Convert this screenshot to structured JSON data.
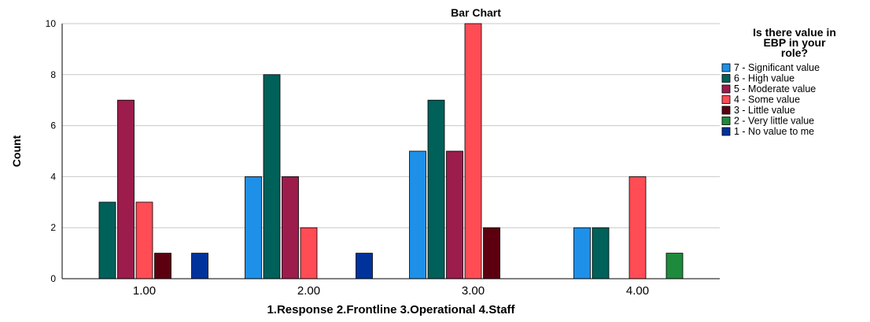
{
  "chart_data": {
    "type": "bar",
    "title": "Bar Chart",
    "xlabel": "1.Response 2.Frontline 3.Operational 4.Staff",
    "ylabel": "Count",
    "categories": [
      "1.00",
      "2.00",
      "3.00",
      "4.00"
    ],
    "ylim": [
      0,
      10
    ],
    "yticks": [
      0,
      2,
      4,
      6,
      8,
      10
    ],
    "grid": true,
    "legend": {
      "title": "Is there value in EBP in your role?",
      "title_lines": [
        "Is there value in",
        "EBP in your",
        "role?"
      ],
      "placement": "right"
    },
    "series": [
      {
        "name": "7 - Significant value",
        "color": "#1E90E8",
        "values": [
          null,
          4,
          5,
          2
        ]
      },
      {
        "name": "6 - High value",
        "color": "#00605A",
        "values": [
          3,
          8,
          7,
          2
        ]
      },
      {
        "name": "5 - Moderate value",
        "color": "#9C1C4C",
        "values": [
          7,
          4,
          5,
          null
        ]
      },
      {
        "name": "4 - Some value",
        "color": "#FF4C55",
        "values": [
          3,
          2,
          10,
          4
        ]
      },
      {
        "name": "3 - Little value",
        "color": "#5C0010",
        "values": [
          1,
          null,
          2,
          null
        ]
      },
      {
        "name": "2 - Very little value",
        "color": "#1E8A3C",
        "values": [
          null,
          null,
          null,
          1
        ]
      },
      {
        "name": "1 - No value to me",
        "color": "#00329C",
        "values": [
          1,
          1,
          null,
          null
        ]
      }
    ]
  }
}
